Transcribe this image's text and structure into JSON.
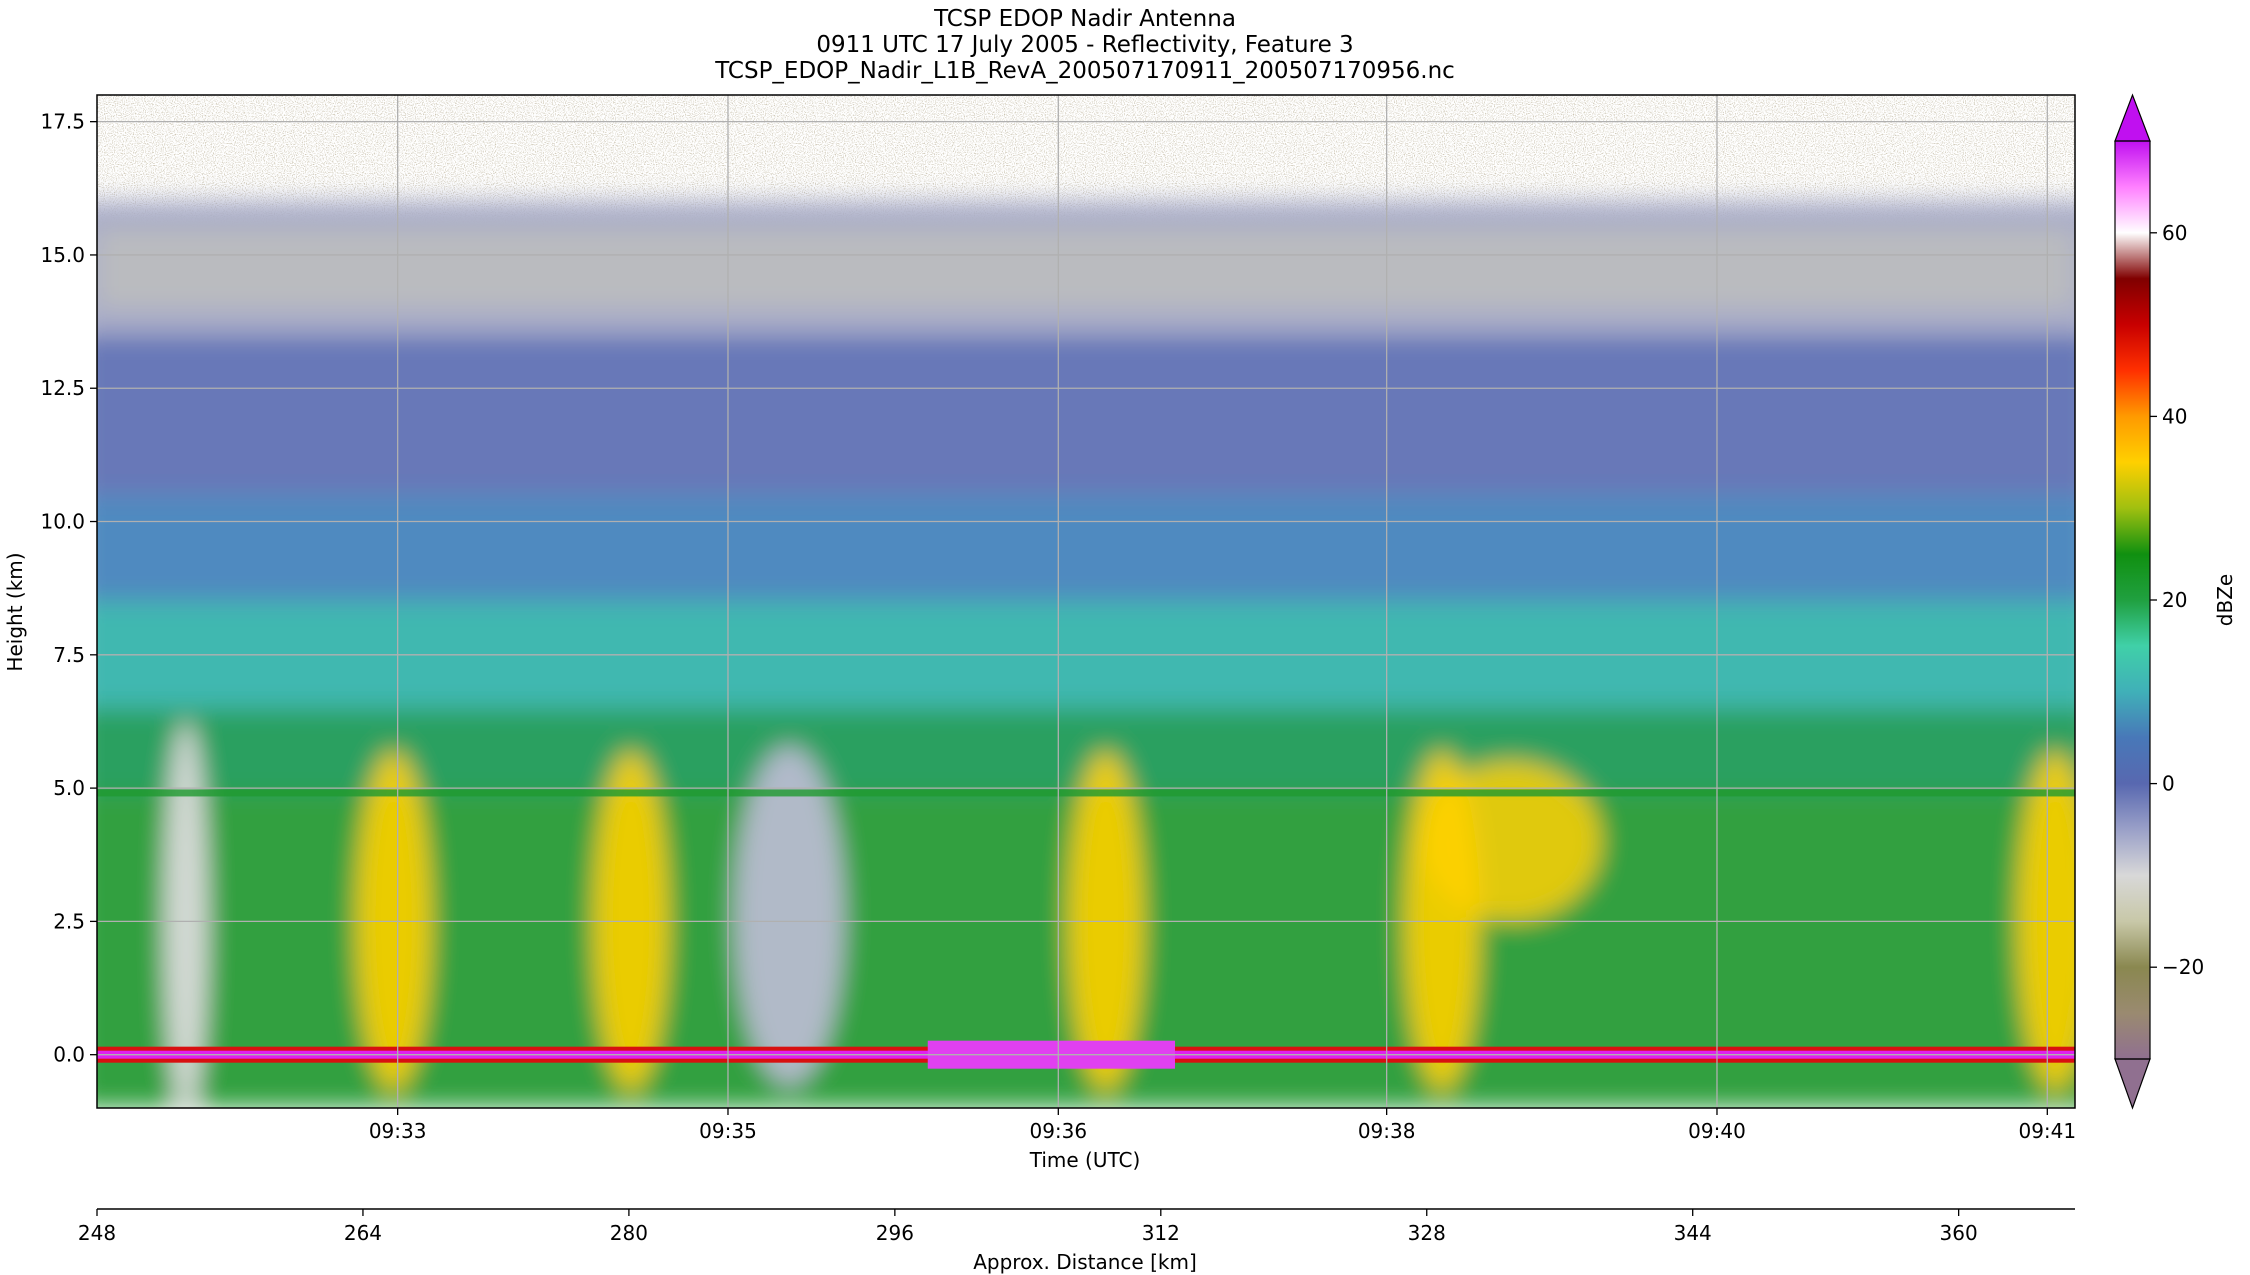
{
  "chart_data": {
    "type": "heatmap",
    "title_lines": [
      "TCSP EDOP Nadir Antenna",
      "0911 UTC 17 July 2005 - Reflectivity, Feature 3",
      "TCSP_EDOP_Nadir_L1B_RevA_200507170911_200507170956.nc"
    ],
    "xlabel": "Time (UTC)",
    "ylabel": "Height (km)",
    "x2label": "Approx. Distance [km]",
    "colorbar_label": "dBZe",
    "x_ticks": [
      "09:33",
      "09:35",
      "09:36",
      "09:38",
      "09:40",
      "09:41"
    ],
    "x_tick_positions": [
      0.152,
      0.319,
      0.486,
      0.652,
      0.819,
      0.986
    ],
    "y_ticks": [
      0.0,
      2.5,
      5.0,
      7.5,
      10.0,
      12.5,
      15.0,
      17.5
    ],
    "y_tick_labels": [
      "0.0",
      "2.5",
      "5.0",
      "7.5",
      "10.0",
      "12.5",
      "15.0",
      "17.5"
    ],
    "ylim": [
      -1.0,
      18.0
    ],
    "x2_ticks": [
      248,
      264,
      280,
      296,
      312,
      328,
      344,
      360
    ],
    "x2_tick_labels": [
      "248",
      "264",
      "280",
      "296",
      "312",
      "328",
      "344",
      "360"
    ],
    "x2lim": [
      248,
      367
    ],
    "colorbar_ticks": [
      -20,
      0,
      20,
      40,
      60
    ],
    "colorbar_tick_labels": [
      "−20",
      "0",
      "20",
      "40",
      "60"
    ],
    "colorbar_range": [
      -30,
      70
    ],
    "grid": true,
    "features": {
      "melting_layer_height_km": 4.9,
      "surface_echo_height_km": 0.0,
      "echo_top_height_km": 16.0,
      "strong_cores_x": [
        0.15,
        0.27,
        0.51,
        0.68,
        0.99
      ]
    },
    "colors": {
      "colormap": [
        "#907090",
        "#9a8a70",
        "#8a8850",
        "#c8c8a8",
        "#d8d8d8",
        "#9aa0c8",
        "#5868b0",
        "#4878b8",
        "#40b0b8",
        "#40d0a8",
        "#20a040",
        "#109010",
        "#a0c010",
        "#ffd000",
        "#ff9a00",
        "#ff3000",
        "#c80000",
        "#800000",
        "#ffffff",
        "#ff80ff",
        "#c010f0"
      ],
      "grid": "#b0b0b0"
    }
  }
}
